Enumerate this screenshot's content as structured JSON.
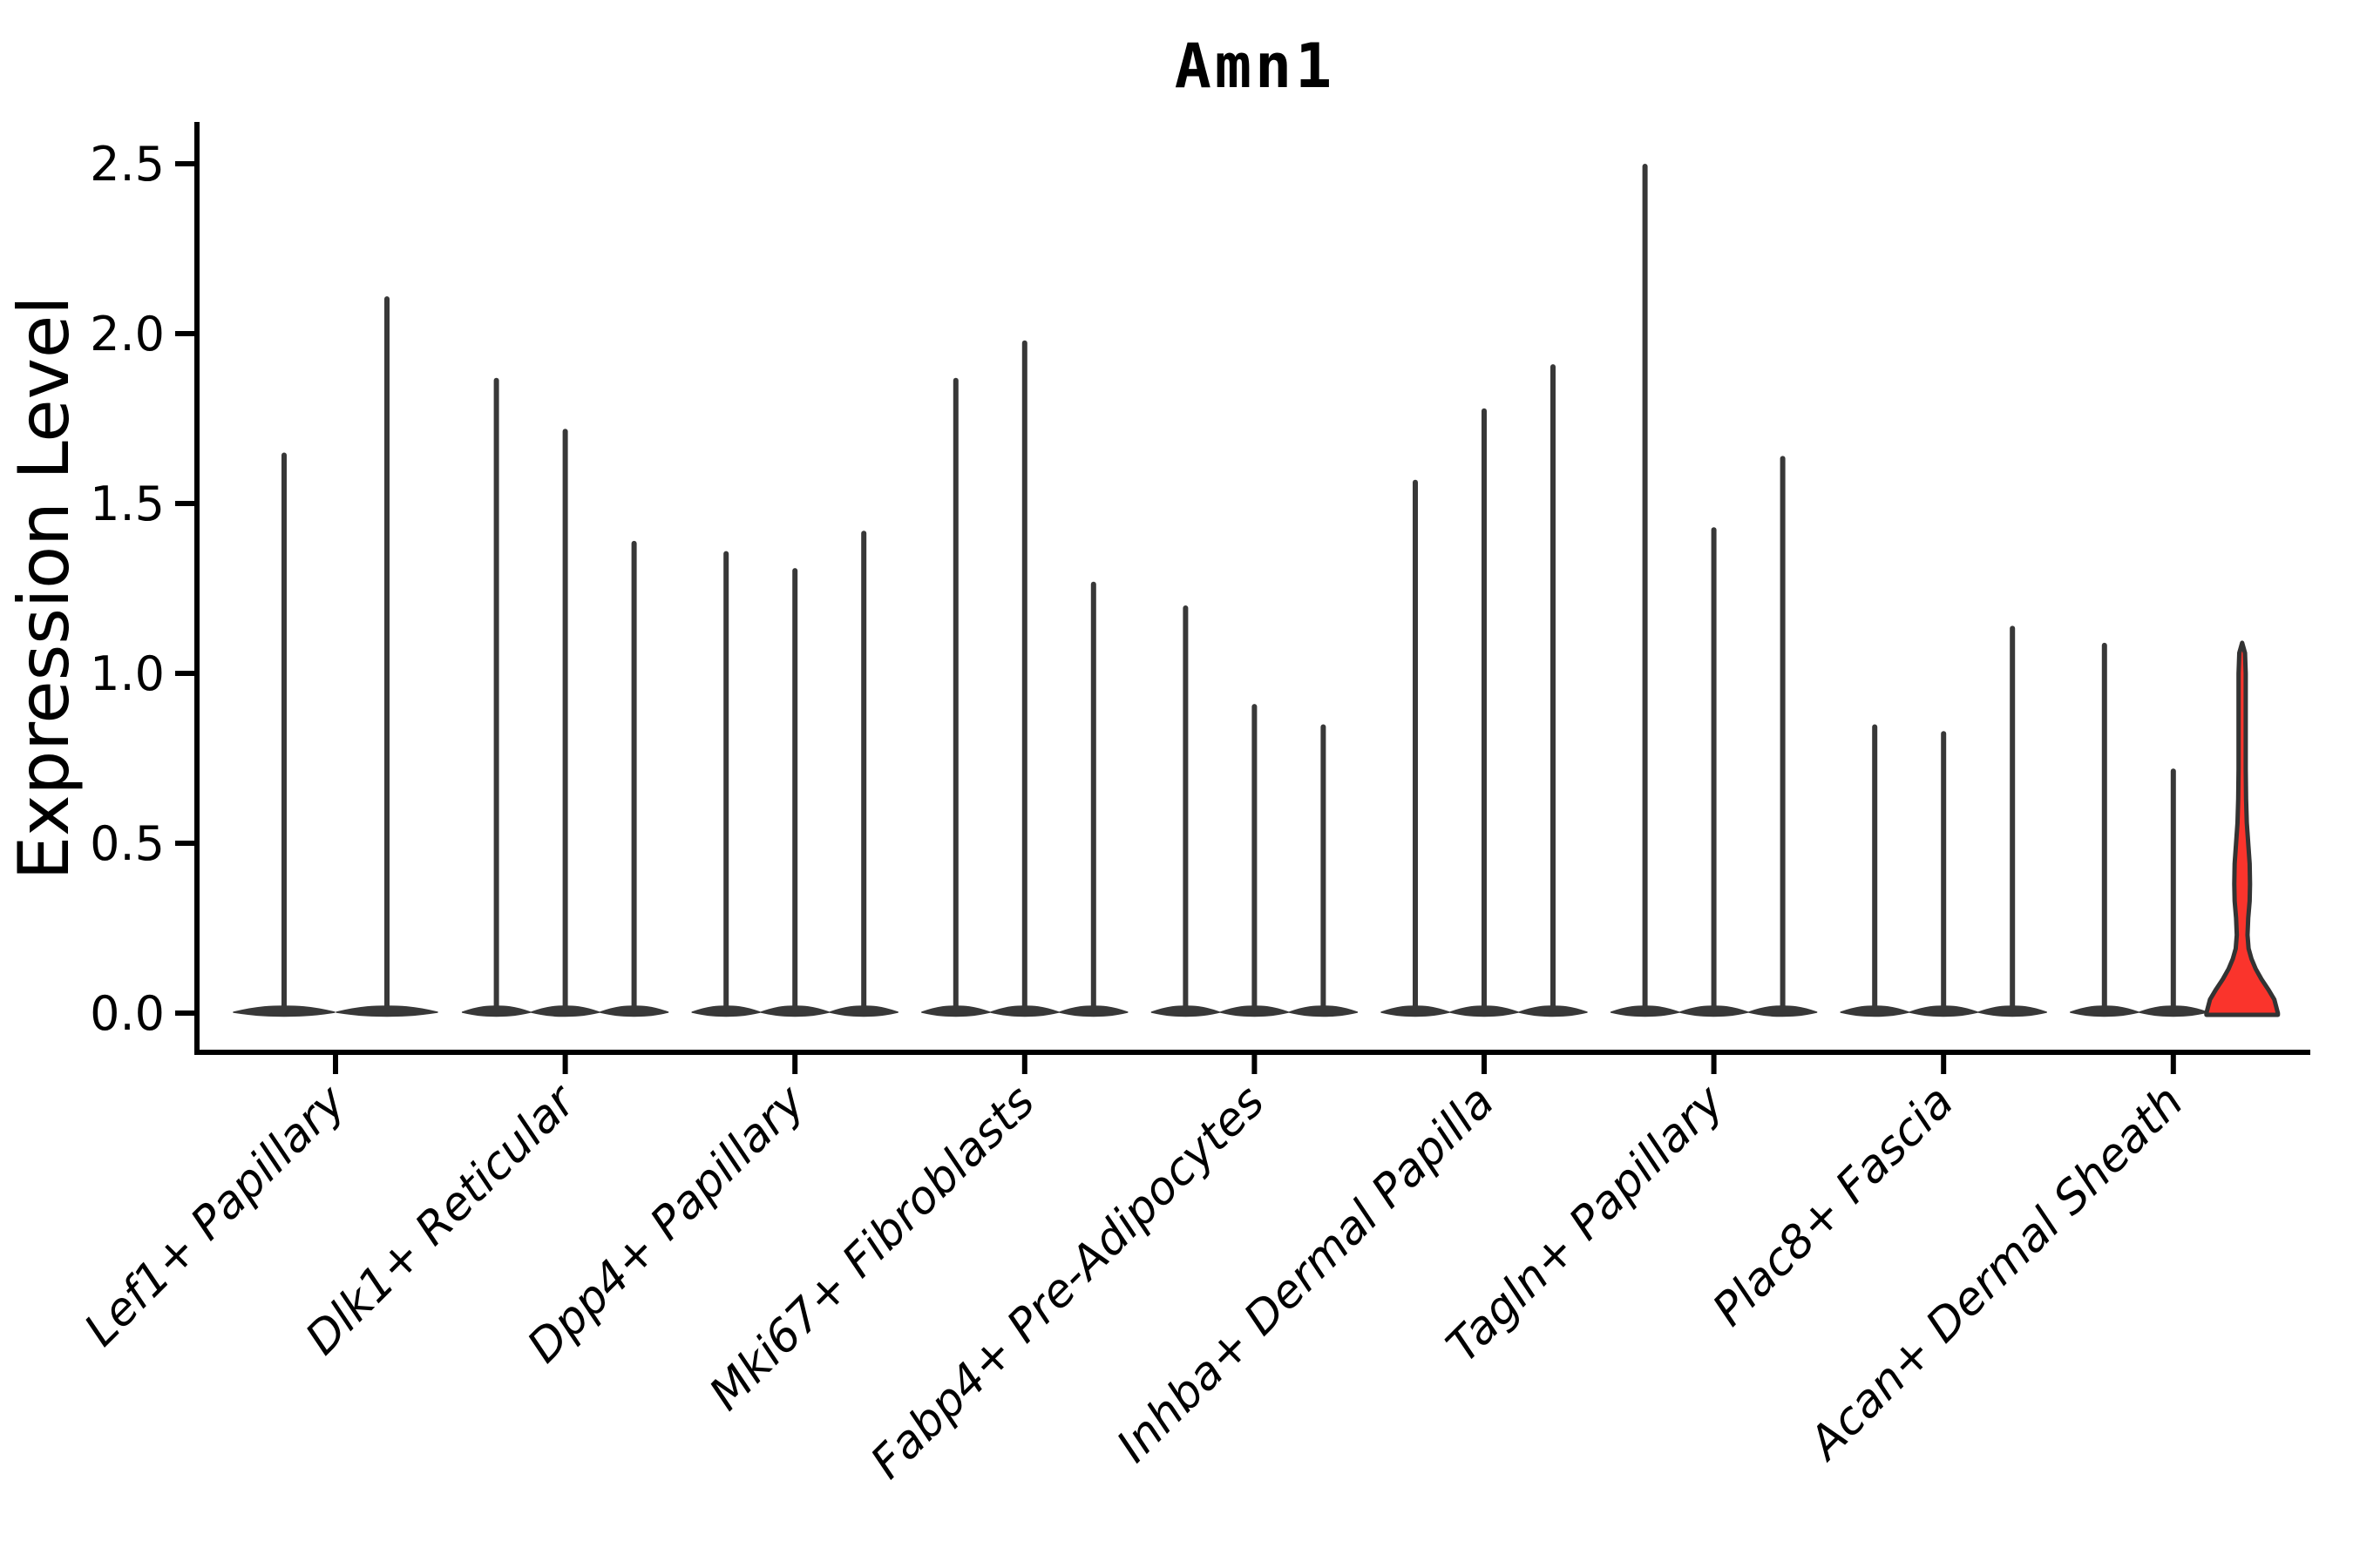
{
  "page": {
    "background": "#ffffff"
  },
  "chart_data": {
    "type": "violin",
    "title": "Amn1",
    "ylabel": "Expression Level",
    "xlabel": "",
    "grid": false,
    "legend_position": "none",
    "ytick_values": [
      0.0,
      0.5,
      1.0,
      1.5,
      2.0,
      2.5
    ],
    "ytick_labels": [
      "0.0",
      "0.5",
      "1.0",
      "1.5",
      "2.0",
      "2.5"
    ],
    "ylim": [
      -0.12,
      2.62
    ],
    "categories": [
      "Lef1+ Papillary",
      "Dlk1+ Reticular",
      "Dpp4+ Papillary",
      "Mki67+ Fibroblasts",
      "Fabp4+ Pre-Adipocytes",
      "Inhba+ Dermal Papilla",
      "Tagln+ Papillary",
      "Plac8+ Fascia",
      "Acan+ Dermal Sheath"
    ],
    "groups": [
      {
        "category": "Lef1+ Papillary",
        "violin_max_expression": [
          1.65,
          2.11
        ]
      },
      {
        "category": "Dlk1+ Reticular",
        "violin_max_expression": [
          1.87,
          1.72,
          1.39
        ]
      },
      {
        "category": "Dpp4+ Papillary",
        "violin_max_expression": [
          1.36,
          1.31,
          1.42
        ]
      },
      {
        "category": "Mki67+ Fibroblasts",
        "violin_max_expression": [
          1.87,
          1.98,
          1.27
        ]
      },
      {
        "category": "Fabp4+ Pre-Adipocytes",
        "violin_max_expression": [
          1.2,
          0.91,
          0.85
        ]
      },
      {
        "category": "Inhba+ Dermal Papilla",
        "violin_max_expression": [
          1.57,
          1.78,
          1.91
        ]
      },
      {
        "category": "Tagln+ Papillary",
        "violin_max_expression": [
          2.5,
          1.43,
          1.64
        ]
      },
      {
        "category": "Plac8+ Fascia",
        "violin_max_expression": [
          0.85,
          0.83,
          1.14
        ]
      },
      {
        "category": "Acan+ Dermal Sheath",
        "violin_max_expression": [
          1.09,
          0.72,
          1.09
        ]
      }
    ],
    "highlight": {
      "category": "Acan+ Dermal Sheath",
      "violin_index": 2,
      "max_expression": 1.09,
      "profile": [
        [
          0.0,
          1.0
        ],
        [
          0.04,
          0.9
        ],
        [
          0.07,
          0.73
        ],
        [
          0.1,
          0.54
        ],
        [
          0.13,
          0.38
        ],
        [
          0.16,
          0.26
        ],
        [
          0.19,
          0.18
        ],
        [
          0.23,
          0.15
        ],
        [
          0.28,
          0.17
        ],
        [
          0.33,
          0.21
        ],
        [
          0.38,
          0.22
        ],
        [
          0.44,
          0.21
        ],
        [
          0.5,
          0.17
        ],
        [
          0.56,
          0.13
        ],
        [
          0.63,
          0.11
        ],
        [
          0.72,
          0.1
        ],
        [
          0.85,
          0.1
        ],
        [
          1.0,
          0.1
        ],
        [
          1.06,
          0.08
        ],
        [
          1.09,
          0.0
        ]
      ]
    },
    "colors": {
      "violin_stroke": "#383838",
      "axis": "#000000",
      "text": "#000000",
      "highlight_fill": "#fa342c",
      "highlight_stroke": "#333333"
    }
  }
}
